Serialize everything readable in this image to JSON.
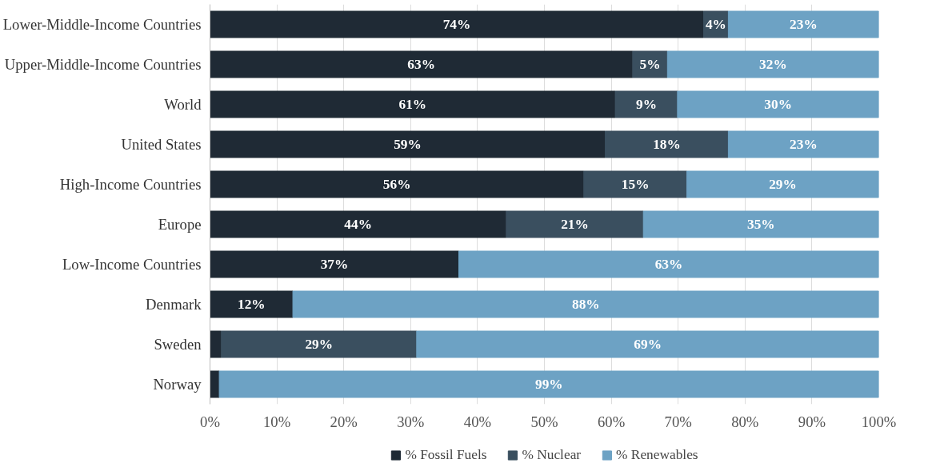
{
  "chart_data": {
    "type": "bar",
    "orientation": "horizontal",
    "stacked": true,
    "categories": [
      "Lower-Middle-Income Countries",
      "Upper-Middle-Income Countries",
      "World",
      "United States",
      "High-Income Countries",
      "Europe",
      "Low-Income Countries",
      "Denmark",
      "Sweden",
      "Norway"
    ],
    "series": [
      {
        "name": "% Fossil Fuels",
        "color": "#1f2a35",
        "values": [
          73.8,
          63.2,
          60.6,
          59.1,
          55.9,
          44.3,
          37.2,
          12.4,
          1.7,
          1.4
        ],
        "value_labels": [
          "74%",
          "63%",
          "61%",
          "59%",
          "56%",
          "44%",
          "37%",
          "12%",
          null,
          null
        ]
      },
      {
        "name": "% Nuclear",
        "color": "#3a4f5f",
        "values": [
          3.7,
          5.2,
          9.3,
          18.4,
          15.4,
          20.5,
          0,
          0,
          29.2,
          0
        ],
        "value_labels": [
          "4%",
          "5%",
          "9%",
          "18%",
          "15%",
          "21%",
          null,
          null,
          "29%",
          null
        ]
      },
      {
        "name": "% Renewables",
        "color": "#6da2c4",
        "values": [
          22.5,
          31.6,
          30.1,
          22.5,
          28.7,
          35.2,
          62.8,
          87.6,
          69.1,
          98.6
        ],
        "value_labels": [
          "23%",
          "32%",
          "30%",
          "23%",
          "29%",
          "35%",
          "63%",
          "88%",
          "69%",
          "99%"
        ]
      }
    ],
    "xlim": [
      0,
      100
    ],
    "xticks": [
      {
        "value": 0,
        "label": "0%"
      },
      {
        "value": 10,
        "label": "10%"
      },
      {
        "value": 20,
        "label": "20%"
      },
      {
        "value": 30,
        "label": "30%"
      },
      {
        "value": 40,
        "label": "40%"
      },
      {
        "value": 50,
        "label": "50%"
      },
      {
        "value": 60,
        "label": "60%"
      },
      {
        "value": 70,
        "label": "70%"
      },
      {
        "value": 80,
        "label": "80%"
      },
      {
        "value": 90,
        "label": "90%"
      },
      {
        "value": 100,
        "label": "100%"
      }
    ],
    "grid": "x",
    "legend": "bottom"
  }
}
